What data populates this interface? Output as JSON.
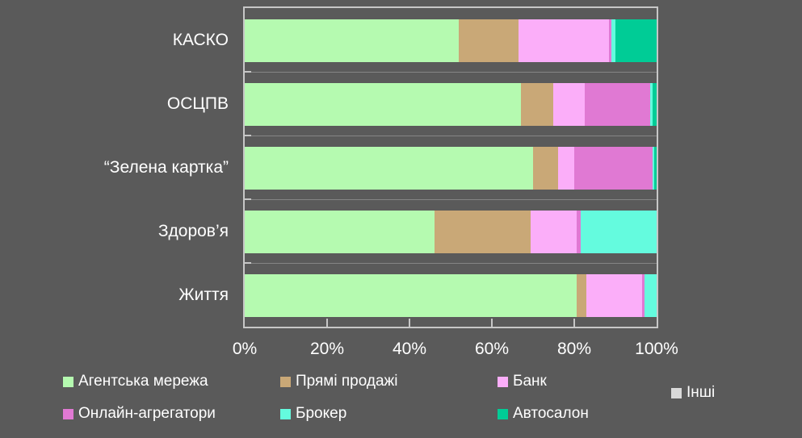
{
  "colors": {
    "background": "#5A5A5A",
    "text": "#FFFFFF",
    "frame": "#C7C7C7"
  },
  "chart_data": {
    "type": "bar",
    "orientation": "horizontal",
    "stacked": true,
    "stack_mode": "percent",
    "title": "",
    "xlabel": "",
    "ylabel": "",
    "grid": false,
    "legend_position": "bottom",
    "categories": [
      "КАСКО",
      "ОСЦПВ",
      "“Зелена картка”",
      "Здоров’я",
      "Життя"
    ],
    "series": [
      {
        "name": "Агентська мережа",
        "color": "#B5FAB0",
        "values": [
          52,
          67,
          70,
          46,
          80.5
        ]
      },
      {
        "name": "Прямі продажі",
        "color": "#C9A877",
        "values": [
          14.5,
          8,
          6,
          23.5,
          2.5
        ]
      },
      {
        "name": "Банк",
        "color": "#FBAEF9",
        "values": [
          22,
          7.5,
          4,
          11,
          13.5
        ]
      },
      {
        "name": "Інші",
        "color": "#D9D9D9",
        "values": [
          0,
          0,
          0,
          0,
          0
        ]
      },
      {
        "name": "Онлайн-агрегатори",
        "color": "#E079D3",
        "values": [
          0.5,
          16,
          19,
          1,
          0.5
        ]
      },
      {
        "name": "Брокер",
        "color": "#64FBDE",
        "values": [
          1,
          0.5,
          0.5,
          18.5,
          3
        ]
      },
      {
        "name": "Автосалон",
        "color": "#00CC96",
        "values": [
          10,
          1,
          0.5,
          0,
          0
        ]
      }
    ],
    "x_axis": {
      "min": 0,
      "max": 100,
      "tick_labels": [
        "0%",
        "20%",
        "40%",
        "60%",
        "80%",
        "100%"
      ]
    }
  }
}
